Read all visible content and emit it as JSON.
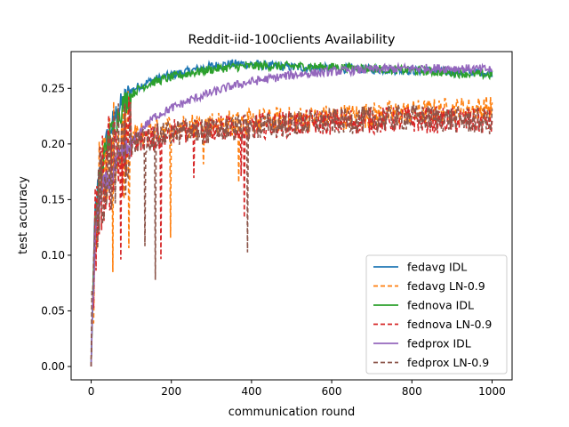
{
  "chart_data": {
    "type": "line",
    "title": "Reddit-iid-100clients Availability",
    "xlabel": "communication round",
    "ylabel": "test accuracy",
    "xlim": [
      -50,
      1050
    ],
    "ylim": [
      -0.012,
      0.283
    ],
    "xticks": [
      0,
      200,
      400,
      600,
      800,
      1000
    ],
    "xtick_labels": [
      "0",
      "200",
      "400",
      "600",
      "800",
      "1000"
    ],
    "yticks": [
      0.0,
      0.05,
      0.1,
      0.15,
      0.2,
      0.25
    ],
    "ytick_labels": [
      "0.00",
      "0.05",
      "0.10",
      "0.15",
      "0.20",
      "0.25"
    ],
    "grid": false,
    "legend_position": "lower right",
    "series": [
      {
        "name": "fedavg IDL",
        "color": "#1f77b4",
        "dash": "solid",
        "x": [
          0,
          10,
          20,
          30,
          40,
          50,
          60,
          80,
          100,
          120,
          150,
          200,
          250,
          300,
          350,
          400,
          450,
          500,
          600,
          700,
          800,
          900,
          1000
        ],
        "y": [
          0.0,
          0.14,
          0.17,
          0.19,
          0.205,
          0.215,
          0.225,
          0.238,
          0.248,
          0.252,
          0.257,
          0.262,
          0.266,
          0.27,
          0.272,
          0.272,
          0.27,
          0.269,
          0.268,
          0.267,
          0.266,
          0.265,
          0.264
        ]
      },
      {
        "name": "fedavg LN-0.9",
        "color": "#ff7f0e",
        "dash": "dashed",
        "x": [
          0,
          10,
          20,
          30,
          40,
          50,
          70,
          100,
          150,
          200,
          300,
          400,
          500,
          600,
          700,
          800,
          900,
          1000
        ],
        "y": [
          0.0,
          0.13,
          0.165,
          0.175,
          0.185,
          0.19,
          0.2,
          0.205,
          0.212,
          0.215,
          0.218,
          0.22,
          0.222,
          0.224,
          0.226,
          0.228,
          0.23,
          0.232
        ]
      },
      {
        "name": "fednova IDL",
        "color": "#2ca02c",
        "dash": "solid",
        "x": [
          0,
          10,
          20,
          30,
          40,
          50,
          60,
          80,
          100,
          120,
          150,
          200,
          250,
          300,
          350,
          400,
          450,
          500,
          600,
          700,
          800,
          900,
          1000
        ],
        "y": [
          0.0,
          0.13,
          0.165,
          0.185,
          0.2,
          0.21,
          0.22,
          0.235,
          0.244,
          0.25,
          0.255,
          0.26,
          0.264,
          0.267,
          0.269,
          0.27,
          0.27,
          0.27,
          0.269,
          0.268,
          0.266,
          0.264,
          0.262
        ]
      },
      {
        "name": "fednova LN-0.9",
        "color": "#d62728",
        "dash": "dashed",
        "x": [
          0,
          10,
          20,
          30,
          40,
          50,
          70,
          100,
          150,
          200,
          300,
          400,
          500,
          600,
          700,
          800,
          900,
          1000
        ],
        "y": [
          0.0,
          0.12,
          0.16,
          0.17,
          0.18,
          0.185,
          0.195,
          0.2,
          0.205,
          0.21,
          0.213,
          0.216,
          0.218,
          0.22,
          0.221,
          0.222,
          0.221,
          0.22
        ]
      },
      {
        "name": "fedprox IDL",
        "color": "#9467bd",
        "dash": "solid",
        "x": [
          0,
          10,
          20,
          30,
          40,
          50,
          70,
          100,
          130,
          160,
          200,
          250,
          300,
          350,
          400,
          450,
          500,
          600,
          700,
          800,
          900,
          1000
        ],
        "y": [
          0.0,
          0.12,
          0.15,
          0.16,
          0.165,
          0.17,
          0.185,
          0.2,
          0.215,
          0.225,
          0.232,
          0.24,
          0.246,
          0.252,
          0.256,
          0.259,
          0.262,
          0.265,
          0.267,
          0.268,
          0.268,
          0.267
        ]
      },
      {
        "name": "fedprox LN-0.9",
        "color": "#8c564b",
        "dash": "dashed",
        "x": [
          0,
          10,
          20,
          30,
          40,
          50,
          70,
          100,
          150,
          200,
          300,
          400,
          500,
          600,
          700,
          800,
          900,
          1000
        ],
        "y": [
          0.0,
          0.12,
          0.16,
          0.17,
          0.18,
          0.185,
          0.195,
          0.2,
          0.205,
          0.21,
          0.212,
          0.215,
          0.218,
          0.22,
          0.222,
          0.224,
          0.222,
          0.22
        ]
      }
    ]
  }
}
